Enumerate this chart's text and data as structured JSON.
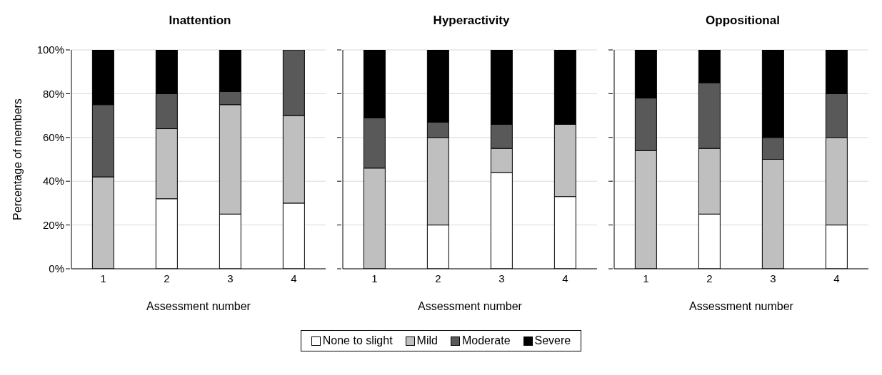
{
  "chart_data": [
    {
      "type": "bar",
      "title": "Inattention",
      "xlabel": "Assessment number",
      "ylabel": "Percentage of members",
      "categories": [
        "1",
        "2",
        "3",
        "4"
      ],
      "stacked": true,
      "ylim": [
        0,
        100
      ],
      "yticks": [
        {
          "value": 0,
          "label": "0%"
        },
        {
          "value": 20,
          "label": "20%"
        },
        {
          "value": 40,
          "label": "40%"
        },
        {
          "value": 60,
          "label": "60%"
        },
        {
          "value": 80,
          "label": "80%"
        },
        {
          "value": 100,
          "label": "100%"
        }
      ],
      "grid": "y",
      "legend": "bottom",
      "series": [
        {
          "name": "None to slight",
          "color": "#ffffff",
          "values": [
            0,
            32,
            25,
            30
          ]
        },
        {
          "name": "Mild",
          "color": "#bfbfbf",
          "values": [
            42,
            32,
            50,
            40
          ]
        },
        {
          "name": "Moderate",
          "color": "#595959",
          "values": [
            33,
            16,
            6,
            30
          ]
        },
        {
          "name": "Severe",
          "color": "#000000",
          "values": [
            25,
            20,
            19,
            0
          ]
        }
      ]
    },
    {
      "type": "bar",
      "title": "Hyperactivity",
      "xlabel": "Assessment number",
      "categories": [
        "1",
        "2",
        "3",
        "4"
      ],
      "stacked": true,
      "ylim": [
        0,
        100
      ],
      "yticks": [
        {
          "value": 0,
          "label": null
        },
        {
          "value": 20,
          "label": null
        },
        {
          "value": 40,
          "label": null
        },
        {
          "value": 60,
          "label": null
        },
        {
          "value": 80,
          "label": null
        },
        {
          "value": 100,
          "label": null
        }
      ],
      "grid": "y",
      "tick_labels": "x",
      "series": [
        {
          "color": "#ffffff",
          "values": [
            0,
            20,
            44,
            33
          ]
        },
        {
          "color": "#bfbfbf",
          "values": [
            46,
            40,
            11,
            33
          ]
        },
        {
          "color": "#595959",
          "values": [
            23,
            7,
            11,
            0
          ]
        },
        {
          "color": "#000000",
          "values": [
            31,
            33,
            34,
            34
          ]
        }
      ]
    },
    {
      "type": "bar",
      "title": "Oppositional",
      "xlabel": "Assessment number",
      "categories": [
        "1",
        "2",
        "3",
        "4"
      ],
      "stacked": true,
      "ylim": [
        0,
        100
      ],
      "yticks": [
        {
          "value": 0,
          "label": null
        },
        {
          "value": 20,
          "label": null
        },
        {
          "value": 40,
          "label": null
        },
        {
          "value": 60,
          "label": null
        },
        {
          "value": 80,
          "label": null
        },
        {
          "value": 100,
          "label": null
        }
      ],
      "grid": "y",
      "tick_labels": "x",
      "series": [
        {
          "color": "#ffffff",
          "values": [
            0,
            25,
            0,
            20
          ]
        },
        {
          "color": "#bfbfbf",
          "values": [
            54,
            30,
            50,
            40
          ]
        },
        {
          "color": "#595959",
          "values": [
            24,
            30,
            10,
            20
          ]
        },
        {
          "color": "#000000",
          "values": [
            22,
            15,
            40,
            20
          ]
        }
      ]
    }
  ]
}
